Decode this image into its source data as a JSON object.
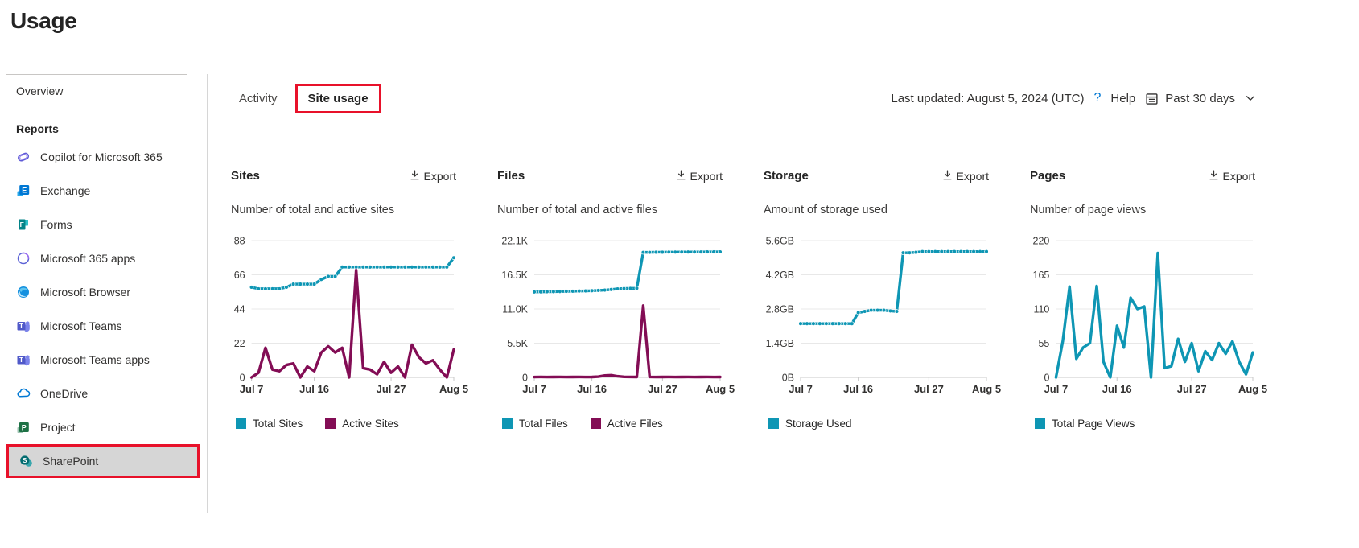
{
  "page": {
    "title": "Usage"
  },
  "sidebar": {
    "overview_label": "Overview",
    "reports_label": "Reports",
    "items": [
      {
        "label": "Copilot for Microsoft 365",
        "icon": "copilot-icon"
      },
      {
        "label": "Exchange",
        "icon": "exchange-icon"
      },
      {
        "label": "Forms",
        "icon": "forms-icon"
      },
      {
        "label": "Microsoft 365 apps",
        "icon": "m365-apps-icon"
      },
      {
        "label": "Microsoft Browser",
        "icon": "edge-browser-icon"
      },
      {
        "label": "Microsoft Teams",
        "icon": "teams-icon"
      },
      {
        "label": "Microsoft Teams apps",
        "icon": "teams-apps-icon"
      },
      {
        "label": "OneDrive",
        "icon": "onedrive-icon"
      },
      {
        "label": "Project",
        "icon": "project-icon"
      },
      {
        "label": "SharePoint",
        "icon": "sharepoint-icon",
        "selected": true
      }
    ]
  },
  "header": {
    "tabs": [
      {
        "label": "Activity"
      },
      {
        "label": "Site usage",
        "active": true,
        "annotated": true
      }
    ],
    "last_updated": "Last updated: August 5, 2024 (UTC)",
    "help_label": "Help",
    "date_range": "Past 30 days"
  },
  "colors": {
    "teal_series": "#0e96b4",
    "maroon_series": "#830d55",
    "annotation_red": "#e8112a",
    "selected_item_bg": "#d6d6d6"
  },
  "chart_data": [
    {
      "type": "line",
      "title": "Sites",
      "export_label": "Export",
      "subtitle": "Number of total and active sites",
      "ylim": [
        0,
        88
      ],
      "yticks": [
        "88",
        "66",
        "44",
        "22",
        "0"
      ],
      "xticks": [
        {
          "label": "Jul 7",
          "pos": 0
        },
        {
          "label": "Jul 16",
          "pos": 0.31
        },
        {
          "label": "Jul 27",
          "pos": 0.69
        },
        {
          "label": "Aug 5",
          "pos": 1
        }
      ],
      "legend_position": "bottom",
      "grid": true,
      "series": [
        {
          "name": "Total Sites",
          "color": "#0e96b4",
          "markers": true,
          "values": [
            58,
            57,
            57,
            57,
            57,
            58,
            60,
            60,
            60,
            60,
            63,
            65,
            65,
            71,
            71,
            71,
            71,
            71,
            71,
            71,
            71,
            71,
            71,
            71,
            71,
            71,
            71,
            71,
            71,
            77
          ]
        },
        {
          "name": "Active Sites",
          "color": "#830d55",
          "markers": false,
          "values": [
            0,
            3,
            19,
            5,
            4,
            8,
            9,
            0,
            7,
            4,
            16,
            20,
            16,
            19,
            0,
            69,
            6,
            5,
            2,
            10,
            3,
            7,
            0,
            21,
            13,
            9,
            11,
            5,
            0,
            18
          ]
        }
      ]
    },
    {
      "type": "line",
      "title": "Files",
      "export_label": "Export",
      "subtitle": "Number of total and active files",
      "ylim": [
        0,
        22100
      ],
      "yticks": [
        "22.1K",
        "16.5K",
        "11.0K",
        "5.5K",
        "0"
      ],
      "xticks": [
        {
          "label": "Jul 7",
          "pos": 0
        },
        {
          "label": "Jul 16",
          "pos": 0.31
        },
        {
          "label": "Jul 27",
          "pos": 0.69
        },
        {
          "label": "Aug 5",
          "pos": 1
        }
      ],
      "legend_position": "bottom",
      "grid": true,
      "series": [
        {
          "name": "Total Files",
          "color": "#0e96b4",
          "markers": true,
          "values": [
            13800,
            13820,
            13840,
            13850,
            13870,
            13900,
            13920,
            13950,
            13970,
            14000,
            14050,
            14100,
            14200,
            14300,
            14350,
            14380,
            14400,
            20200,
            20200,
            20220,
            20220,
            20240,
            20240,
            20250,
            20250,
            20260,
            20260,
            20270,
            20270,
            20280
          ]
        },
        {
          "name": "Active Files",
          "color": "#830d55",
          "markers": false,
          "values": [
            60,
            70,
            60,
            65,
            70,
            60,
            65,
            70,
            60,
            65,
            120,
            300,
            350,
            180,
            90,
            70,
            65,
            11600,
            70,
            60,
            65,
            70,
            60,
            65,
            70,
            60,
            65,
            70,
            60,
            65
          ]
        }
      ]
    },
    {
      "type": "line",
      "title": "Storage",
      "export_label": "Export",
      "subtitle": "Amount of storage used",
      "ylim": [
        0,
        5.6
      ],
      "yticks": [
        "5.6GB",
        "4.2GB",
        "2.8GB",
        "1.4GB",
        "0B"
      ],
      "xticks": [
        {
          "label": "Jul 7",
          "pos": 0
        },
        {
          "label": "Jul 16",
          "pos": 0.31
        },
        {
          "label": "Jul 27",
          "pos": 0.69
        },
        {
          "label": "Aug 5",
          "pos": 1
        }
      ],
      "legend_position": "bottom",
      "grid": true,
      "series": [
        {
          "name": "Storage Used",
          "color": "#0e96b4",
          "markers": true,
          "values": [
            2.2,
            2.2,
            2.2,
            2.2,
            2.2,
            2.2,
            2.2,
            2.2,
            2.2,
            2.65,
            2.7,
            2.75,
            2.75,
            2.75,
            2.72,
            2.7,
            5.1,
            5.1,
            5.12,
            5.15,
            5.15,
            5.15,
            5.15,
            5.15,
            5.15,
            5.15,
            5.15,
            5.15,
            5.15,
            5.15
          ]
        }
      ]
    },
    {
      "type": "line",
      "title": "Pages",
      "export_label": "Export",
      "subtitle": "Number of page views",
      "ylim": [
        0,
        220
      ],
      "yticks": [
        "220",
        "165",
        "110",
        "55",
        "0"
      ],
      "xticks": [
        {
          "label": "Jul 7",
          "pos": 0
        },
        {
          "label": "Jul 16",
          "pos": 0.31
        },
        {
          "label": "Jul 27",
          "pos": 0.69
        },
        {
          "label": "Aug 5",
          "pos": 1
        }
      ],
      "legend_position": "bottom",
      "grid": true,
      "series": [
        {
          "name": "Total Page Views",
          "color": "#0e96b4",
          "markers": false,
          "values": [
            0,
            58,
            146,
            30,
            48,
            55,
            147,
            25,
            0,
            83,
            48,
            128,
            110,
            114,
            0,
            200,
            15,
            18,
            62,
            25,
            55,
            10,
            42,
            28,
            55,
            38,
            58,
            25,
            5,
            40
          ]
        }
      ]
    }
  ]
}
